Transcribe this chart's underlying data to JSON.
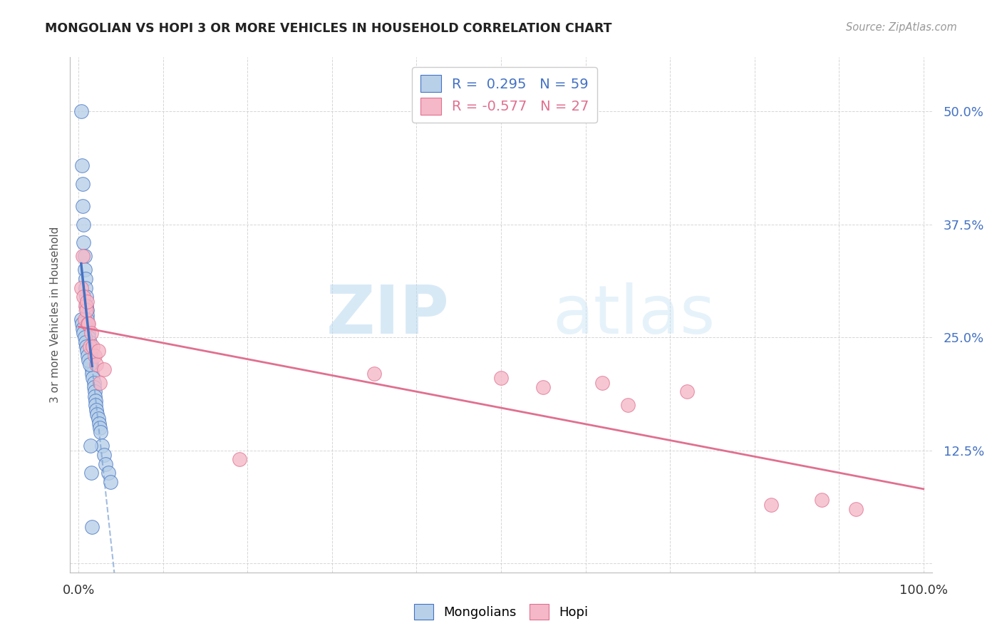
{
  "title": "MONGOLIAN VS HOPI 3 OR MORE VEHICLES IN HOUSEHOLD CORRELATION CHART",
  "source": "Source: ZipAtlas.com",
  "ylabel": "3 or more Vehicles in Household",
  "mongolian_R": 0.295,
  "mongolian_N": 59,
  "hopi_R": -0.577,
  "hopi_N": 27,
  "mongolian_color": "#b8d0e8",
  "mongolian_line_color": "#4472c4",
  "mongolian_line_dash_color": "#7aa0d4",
  "hopi_color": "#f4b8c8",
  "hopi_line_color": "#e07090",
  "watermark_zip": "ZIP",
  "watermark_atlas": "atlas",
  "xlim": [
    -0.01,
    1.01
  ],
  "ylim": [
    -0.01,
    0.56
  ],
  "x_ticks": [
    0.0,
    0.1,
    0.2,
    0.3,
    0.4,
    0.5,
    0.6,
    0.7,
    0.8,
    0.9,
    1.0
  ],
  "y_ticks": [
    0.0,
    0.125,
    0.25,
    0.375,
    0.5
  ],
  "mongolian_x": [
    0.003,
    0.004,
    0.005,
    0.005,
    0.006,
    0.006,
    0.007,
    0.007,
    0.008,
    0.008,
    0.009,
    0.009,
    0.01,
    0.01,
    0.01,
    0.011,
    0.011,
    0.012,
    0.012,
    0.013,
    0.013,
    0.014,
    0.014,
    0.015,
    0.015,
    0.016,
    0.016,
    0.017,
    0.018,
    0.018,
    0.019,
    0.019,
    0.02,
    0.02,
    0.021,
    0.022,
    0.023,
    0.024,
    0.025,
    0.026,
    0.028,
    0.03,
    0.032,
    0.035,
    0.038,
    0.003,
    0.004,
    0.005,
    0.006,
    0.007,
    0.008,
    0.009,
    0.01,
    0.011,
    0.012,
    0.013,
    0.014,
    0.015,
    0.016
  ],
  "mongolian_y": [
    0.5,
    0.44,
    0.42,
    0.395,
    0.375,
    0.355,
    0.34,
    0.325,
    0.315,
    0.305,
    0.295,
    0.285,
    0.28,
    0.275,
    0.27,
    0.265,
    0.26,
    0.255,
    0.25,
    0.245,
    0.24,
    0.235,
    0.23,
    0.225,
    0.22,
    0.215,
    0.21,
    0.205,
    0.2,
    0.195,
    0.19,
    0.185,
    0.18,
    0.175,
    0.17,
    0.165,
    0.16,
    0.155,
    0.15,
    0.145,
    0.13,
    0.12,
    0.11,
    0.1,
    0.09,
    0.27,
    0.265,
    0.26,
    0.255,
    0.25,
    0.245,
    0.24,
    0.235,
    0.23,
    0.225,
    0.22,
    0.13,
    0.1,
    0.04
  ],
  "hopi_x": [
    0.003,
    0.005,
    0.006,
    0.007,
    0.008,
    0.009,
    0.01,
    0.011,
    0.012,
    0.013,
    0.015,
    0.017,
    0.019,
    0.021,
    0.023,
    0.025,
    0.03,
    0.19,
    0.35,
    0.5,
    0.55,
    0.62,
    0.65,
    0.72,
    0.82,
    0.88,
    0.92
  ],
  "hopi_y": [
    0.305,
    0.34,
    0.295,
    0.27,
    0.285,
    0.28,
    0.29,
    0.265,
    0.265,
    0.24,
    0.255,
    0.24,
    0.23,
    0.22,
    0.235,
    0.2,
    0.215,
    0.115,
    0.21,
    0.205,
    0.195,
    0.2,
    0.175,
    0.19,
    0.065,
    0.07,
    0.06
  ]
}
